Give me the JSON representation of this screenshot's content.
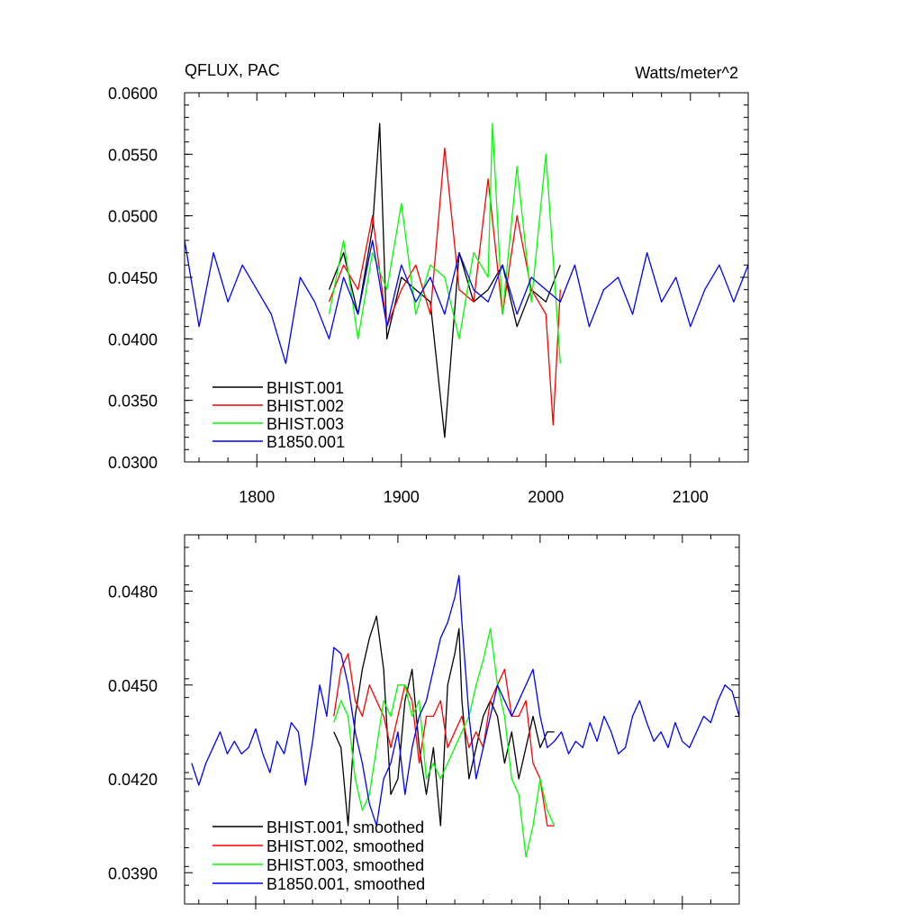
{
  "chart_data": [
    {
      "type": "line",
      "title": "QFLUX, PAC",
      "units": "Watts/meter^2",
      "xlabel": "",
      "ylabel": "",
      "xlim": [
        1750,
        2140
      ],
      "ylim": [
        0.03,
        0.06
      ],
      "xticks": [
        1800,
        1900,
        2000,
        2100
      ],
      "xtick_labels": [
        "1800",
        "1900",
        "2000",
        "2100"
      ],
      "yticks": [
        0.03,
        0.035,
        0.04,
        0.045,
        0.05,
        0.055,
        0.06
      ],
      "ytick_labels": [
        "0.0300",
        "0.0350",
        "0.0400",
        "0.0450",
        "0.0500",
        "0.0550",
        "0.0600"
      ],
      "legend_position": "bottom-left",
      "series": [
        {
          "name": "BHIST.001",
          "color": "#000000",
          "x": [
            1850,
            1860,
            1870,
            1880,
            1885,
            1890,
            1900,
            1910,
            1920,
            1930,
            1940,
            1950,
            1960,
            1970,
            1980,
            1990,
            2000,
            2010
          ],
          "values": [
            0.044,
            0.047,
            0.042,
            0.049,
            0.0575,
            0.04,
            0.045,
            0.044,
            0.043,
            0.032,
            0.047,
            0.043,
            0.044,
            0.046,
            0.041,
            0.044,
            0.043,
            0.046
          ]
        },
        {
          "name": "BHIST.002",
          "color": "#ff0000",
          "x": [
            1850,
            1860,
            1870,
            1880,
            1890,
            1900,
            1910,
            1920,
            1930,
            1940,
            1950,
            1960,
            1970,
            1980,
            1990,
            2000,
            2005,
            2010
          ],
          "values": [
            0.043,
            0.046,
            0.044,
            0.05,
            0.041,
            0.044,
            0.046,
            0.042,
            0.0555,
            0.044,
            0.043,
            0.053,
            0.042,
            0.05,
            0.044,
            0.042,
            0.033,
            0.044
          ]
        },
        {
          "name": "BHIST.003",
          "color": "#00ff00",
          "x": [
            1850,
            1860,
            1870,
            1880,
            1890,
            1900,
            1910,
            1920,
            1930,
            1940,
            1950,
            1960,
            1963,
            1970,
            1980,
            1990,
            2000,
            2010
          ],
          "values": [
            0.042,
            0.048,
            0.04,
            0.047,
            0.044,
            0.051,
            0.042,
            0.046,
            0.045,
            0.04,
            0.047,
            0.045,
            0.0575,
            0.042,
            0.054,
            0.043,
            0.055,
            0.038
          ]
        },
        {
          "name": "B1850.001",
          "color": "#0000ff",
          "x": [
            1750,
            1760,
            1770,
            1780,
            1790,
            1800,
            1810,
            1820,
            1830,
            1840,
            1850,
            1860,
            1870,
            1880,
            1890,
            1900,
            1910,
            1920,
            1930,
            1940,
            1950,
            1960,
            1970,
            1980,
            1990,
            2000,
            2010,
            2020,
            2030,
            2040,
            2050,
            2060,
            2070,
            2080,
            2090,
            2100,
            2110,
            2120,
            2130,
            2140
          ],
          "values": [
            0.048,
            0.041,
            0.047,
            0.043,
            0.046,
            0.044,
            0.042,
            0.038,
            0.045,
            0.043,
            0.04,
            0.045,
            0.042,
            0.048,
            0.041,
            0.046,
            0.043,
            0.045,
            0.042,
            0.047,
            0.044,
            0.043,
            0.046,
            0.042,
            0.045,
            0.044,
            0.043,
            0.046,
            0.041,
            0.044,
            0.045,
            0.042,
            0.047,
            0.043,
            0.045,
            0.041,
            0.044,
            0.046,
            0.043,
            0.046
          ]
        }
      ]
    },
    {
      "type": "line",
      "title": "",
      "xlabel": "",
      "ylabel": "",
      "xlim": [
        1750,
        2140
      ],
      "ylim": [
        0.038,
        0.0498
      ],
      "xticks": [
        1800,
        1900,
        2000,
        2100
      ],
      "xtick_labels": [],
      "yticks": [
        0.039,
        0.042,
        0.045,
        0.048
      ],
      "ytick_labels": [
        "0.0390",
        "0.0420",
        "0.0450",
        "0.0480"
      ],
      "legend_position": "bottom-left",
      "series": [
        {
          "name": "BHIST.001, smoothed",
          "color": "#000000",
          "x": [
            1855,
            1860,
            1865,
            1870,
            1875,
            1880,
            1885,
            1890,
            1895,
            1900,
            1905,
            1910,
            1915,
            1920,
            1925,
            1930,
            1935,
            1940,
            1943,
            1945,
            1950,
            1955,
            1960,
            1965,
            1970,
            1975,
            1980,
            1985,
            1990,
            1995,
            2000,
            2005,
            2010
          ],
          "values": [
            0.0435,
            0.043,
            0.0405,
            0.044,
            0.0455,
            0.0465,
            0.0472,
            0.0455,
            0.0415,
            0.042,
            0.0445,
            0.0455,
            0.043,
            0.0415,
            0.043,
            0.0405,
            0.045,
            0.046,
            0.0468,
            0.0445,
            0.042,
            0.043,
            0.044,
            0.0445,
            0.044,
            0.0425,
            0.0435,
            0.042,
            0.043,
            0.044,
            0.043,
            0.0435,
            0.0435
          ]
        },
        {
          "name": "BHIST.002, smoothed",
          "color": "#ff0000",
          "x": [
            1855,
            1860,
            1865,
            1870,
            1875,
            1880,
            1885,
            1890,
            1895,
            1900,
            1905,
            1910,
            1915,
            1920,
            1925,
            1930,
            1935,
            1940,
            1945,
            1950,
            1955,
            1960,
            1965,
            1970,
            1975,
            1980,
            1985,
            1990,
            1995,
            2000,
            2005,
            2010
          ],
          "values": [
            0.044,
            0.0455,
            0.046,
            0.0445,
            0.044,
            0.045,
            0.0445,
            0.044,
            0.043,
            0.044,
            0.045,
            0.0445,
            0.0425,
            0.044,
            0.044,
            0.0445,
            0.043,
            0.0435,
            0.044,
            0.043,
            0.0435,
            0.043,
            0.0445,
            0.045,
            0.0455,
            0.044,
            0.044,
            0.0445,
            0.0425,
            0.042,
            0.0405,
            0.0405
          ]
        },
        {
          "name": "BHIST.003, smoothed",
          "color": "#00ff00",
          "x": [
            1855,
            1860,
            1865,
            1870,
            1875,
            1880,
            1885,
            1890,
            1895,
            1900,
            1905,
            1910,
            1915,
            1920,
            1925,
            1930,
            1935,
            1940,
            1945,
            1950,
            1955,
            1960,
            1965,
            1970,
            1975,
            1980,
            1985,
            1990,
            1995,
            2000,
            2005,
            2010
          ],
          "values": [
            0.0438,
            0.0445,
            0.044,
            0.042,
            0.041,
            0.0415,
            0.043,
            0.0445,
            0.044,
            0.045,
            0.045,
            0.044,
            0.0445,
            0.042,
            0.0425,
            0.042,
            0.0425,
            0.043,
            0.0435,
            0.044,
            0.045,
            0.0458,
            0.0468,
            0.045,
            0.044,
            0.042,
            0.0415,
            0.0395,
            0.0405,
            0.042,
            0.041,
            0.0405
          ]
        },
        {
          "name": "B1850.001, smoothed",
          "color": "#0000ff",
          "x": [
            1755,
            1760,
            1765,
            1770,
            1775,
            1780,
            1785,
            1790,
            1795,
            1800,
            1805,
            1810,
            1815,
            1820,
            1825,
            1830,
            1835,
            1840,
            1845,
            1850,
            1855,
            1860,
            1865,
            1870,
            1875,
            1880,
            1885,
            1890,
            1895,
            1900,
            1905,
            1910,
            1915,
            1920,
            1925,
            1930,
            1935,
            1940,
            1943,
            1945,
            1950,
            1955,
            1960,
            1965,
            1970,
            1975,
            1980,
            1985,
            1990,
            1995,
            2000,
            2005,
            2010,
            2015,
            2020,
            2025,
            2030,
            2035,
            2040,
            2045,
            2050,
            2055,
            2060,
            2065,
            2070,
            2075,
            2080,
            2085,
            2090,
            2095,
            2100,
            2105,
            2110,
            2115,
            2120,
            2125,
            2130,
            2135,
            2140
          ],
          "values": [
            0.0425,
            0.0418,
            0.0425,
            0.043,
            0.0435,
            0.0428,
            0.0432,
            0.0428,
            0.043,
            0.0436,
            0.0428,
            0.0422,
            0.0432,
            0.0428,
            0.0438,
            0.0435,
            0.0418,
            0.0432,
            0.045,
            0.044,
            0.0462,
            0.046,
            0.045,
            0.0435,
            0.0425,
            0.0412,
            0.0405,
            0.042,
            0.0425,
            0.0435,
            0.0415,
            0.043,
            0.044,
            0.0445,
            0.0455,
            0.0465,
            0.047,
            0.0478,
            0.0485,
            0.047,
            0.044,
            0.042,
            0.043,
            0.044,
            0.045,
            0.0445,
            0.044,
            0.0445,
            0.045,
            0.0455,
            0.044,
            0.043,
            0.0432,
            0.0435,
            0.0428,
            0.0432,
            0.043,
            0.0438,
            0.0432,
            0.044,
            0.0435,
            0.0428,
            0.043,
            0.044,
            0.0445,
            0.0438,
            0.0432,
            0.0435,
            0.043,
            0.0438,
            0.0432,
            0.043,
            0.0435,
            0.044,
            0.0438,
            0.0445,
            0.045,
            0.0448,
            0.044
          ]
        }
      ]
    }
  ]
}
